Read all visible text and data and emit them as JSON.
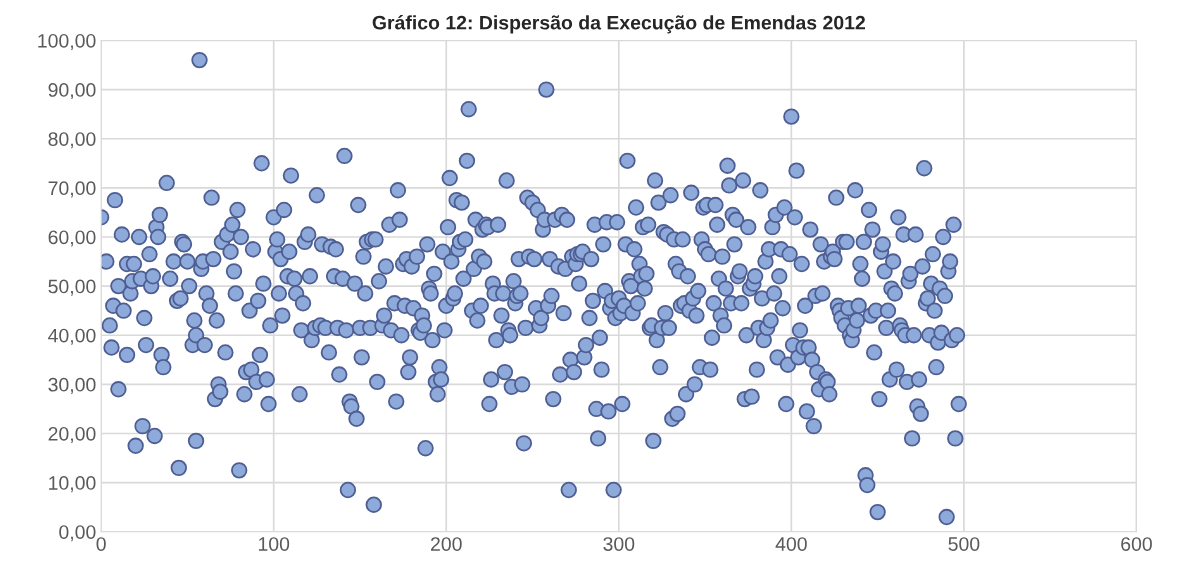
{
  "chart_data": {
    "type": "scatter",
    "title": "Gráfico 12: Dispersão da Execução de Emendas 2012",
    "xlim": [
      0,
      600
    ],
    "xticks": [
      0,
      100,
      200,
      300,
      400,
      500,
      600
    ],
    "ylim": [
      0,
      100
    ],
    "yticks": [
      {
        "value": 0,
        "label": "0,00"
      },
      {
        "value": 10,
        "label": "10,00"
      },
      {
        "value": 20,
        "label": "20,00"
      },
      {
        "value": 30,
        "label": "30,00"
      },
      {
        "value": 40,
        "label": "40,00"
      },
      {
        "value": 50,
        "label": "50,00"
      },
      {
        "value": 60,
        "label": "60,00"
      },
      {
        "value": 70,
        "label": "70,00"
      },
      {
        "value": 80,
        "label": "80,00"
      },
      {
        "value": 90,
        "label": "90,00"
      },
      {
        "value": 100,
        "label": "100,00"
      }
    ],
    "grid": true,
    "marker": "circle",
    "series": [
      {
        "color": "#8eaadb",
        "x": [
          0,
          3,
          5,
          6,
          7,
          8,
          10,
          10,
          12,
          13,
          15,
          15,
          17,
          18,
          19,
          20,
          22,
          23,
          24,
          25,
          26,
          28,
          29,
          30,
          31,
          32,
          33,
          34,
          35,
          36,
          38,
          40,
          42,
          44,
          45,
          46,
          47,
          48,
          50,
          51,
          53,
          54,
          55,
          55,
          57,
          58,
          59,
          60,
          61,
          63,
          64,
          65,
          66,
          67,
          68,
          69,
          70,
          72,
          73,
          75,
          76,
          77,
          78,
          79,
          80,
          81,
          83,
          84,
          86,
          87,
          88,
          90,
          91,
          92,
          93,
          94,
          96,
          97,
          98,
          100,
          101,
          102,
          103,
          104,
          105,
          106,
          108,
          109,
          110,
          112,
          113,
          115,
          116,
          117,
          118,
          120,
          121,
          122,
          124,
          125,
          127,
          128,
          130,
          132,
          133,
          135,
          136,
          137,
          138,
          140,
          141,
          142,
          143,
          144,
          145,
          147,
          148,
          149,
          150,
          151,
          152,
          153,
          154,
          156,
          157,
          158,
          159,
          160,
          161,
          163,
          164,
          165,
          167,
          168,
          170,
          171,
          172,
          173,
          174,
          175,
          176,
          177,
          178,
          179,
          180,
          181,
          183,
          184,
          185,
          186,
          187,
          188,
          189,
          190,
          191,
          192,
          193,
          194,
          195,
          196,
          197,
          198,
          199,
          200,
          201,
          202,
          203,
          204,
          205,
          206,
          207,
          208,
          209,
          210,
          211,
          212,
          213,
          215,
          216,
          217,
          218,
          219,
          220,
          221,
          222,
          223,
          224,
          225,
          226,
          227,
          228,
          229,
          230,
          232,
          233,
          234,
          235,
          236,
          237,
          238,
          239,
          240,
          241,
          242,
          243,
          244,
          245,
          246,
          247,
          248,
          250,
          251,
          252,
          253,
          254,
          255,
          256,
          257,
          258,
          259,
          260,
          261,
          262,
          263,
          265,
          266,
          267,
          268,
          269,
          270,
          271,
          272,
          273,
          274,
          275,
          276,
          277,
          278,
          279,
          280,
          281,
          283,
          284,
          285,
          286,
          287,
          288,
          289,
          290,
          291,
          292,
          293,
          294,
          295,
          296,
          297,
          298,
          299,
          300,
          301,
          302,
          303,
          304,
          305,
          306,
          307,
          308,
          309,
          310,
          311,
          312,
          313,
          314,
          315,
          316,
          317,
          318,
          319,
          320,
          321,
          322,
          323,
          324,
          325,
          326,
          327,
          328,
          329,
          330,
          331,
          332,
          333,
          334,
          335,
          336,
          337,
          338,
          339,
          340,
          341,
          342,
          343,
          344,
          345,
          346,
          347,
          348,
          349,
          350,
          351,
          352,
          353,
          354,
          355,
          356,
          357,
          358,
          359,
          360,
          361,
          362,
          363,
          364,
          365,
          366,
          367,
          368,
          369,
          370,
          371,
          372,
          373,
          374,
          375,
          376,
          377,
          378,
          379,
          380,
          381,
          382,
          383,
          384,
          385,
          386,
          387,
          388,
          389,
          390,
          391,
          392,
          393,
          394,
          395,
          396,
          397,
          398,
          399,
          400,
          401,
          402,
          403,
          404,
          405,
          406,
          407,
          408,
          409,
          410,
          411,
          412,
          413,
          414,
          415,
          416,
          417,
          418,
          419,
          420,
          421,
          422,
          423,
          424,
          425,
          426,
          427,
          428,
          429,
          430,
          431,
          432,
          433,
          434,
          435,
          436,
          437,
          438,
          439,
          440,
          441,
          442,
          443,
          444,
          445,
          446,
          447,
          448,
          449,
          450,
          451,
          452,
          453,
          454,
          455,
          456,
          457,
          458,
          459,
          460,
          461,
          462,
          463,
          464,
          465,
          466,
          467,
          468,
          469,
          470,
          471,
          472,
          473,
          474,
          475,
          476,
          477,
          478,
          479,
          480,
          481,
          482,
          483,
          484,
          485,
          486,
          487,
          488,
          489,
          490,
          491,
          492,
          493,
          494,
          495,
          496,
          497
        ],
        "values": [
          64,
          55,
          42,
          37.5,
          46,
          67.5,
          29,
          50,
          60.5,
          45,
          36,
          54.5,
          48.5,
          51,
          54.5,
          17.5,
          60,
          51.5,
          21.5,
          43.5,
          38,
          56.5,
          50,
          52,
          19.5,
          62,
          60,
          64.5,
          36,
          33.5,
          71,
          51.5,
          55,
          47,
          13,
          47.5,
          59,
          58.5,
          55,
          50,
          38,
          43,
          40,
          18.5,
          96,
          53.5,
          55,
          38,
          48.5,
          46,
          68,
          55.5,
          27,
          43,
          30,
          28.5,
          59,
          36.5,
          60.5,
          57,
          62.5,
          53,
          48.5,
          65.5,
          12.5,
          60,
          28,
          32.5,
          45,
          33,
          57.5,
          30.5,
          47,
          36,
          75,
          50.5,
          31,
          26,
          42,
          64,
          57,
          59.5,
          48.5,
          55.5,
          44,
          65.5,
          52,
          57,
          72.5,
          51.5,
          48.5,
          28,
          41,
          46.5,
          59,
          60.5,
          52,
          39,
          41.5,
          68.5,
          42,
          58.5,
          41.5,
          36.5,
          58,
          52,
          57.5,
          41.5,
          32,
          51.5,
          76.5,
          41,
          8.5,
          26.5,
          25.5,
          50.5,
          23,
          66.5,
          41.5,
          35.5,
          56,
          48.5,
          59,
          41.5,
          59.5,
          5.5,
          59.5,
          30.5,
          51,
          42,
          44,
          54,
          62.5,
          41,
          46.5,
          26.5,
          69.5,
          63.5,
          40,
          54.5,
          46,
          55.5,
          32.5,
          35.5,
          54,
          45.5,
          56,
          41,
          40.5,
          44,
          42,
          17,
          58.5,
          49.5,
          48.5,
          39,
          52.5,
          30.5,
          28,
          33.5,
          31,
          57,
          41,
          46,
          62,
          72,
          55,
          47.5,
          48.5,
          67.5,
          57.5,
          59,
          67,
          51.5,
          59.5,
          75.5,
          86,
          45,
          53.5,
          63.5,
          43,
          56,
          46,
          61.5,
          55,
          62.5,
          62,
          26,
          31,
          50.5,
          48.5,
          39,
          62.5,
          44,
          48.5,
          32.5,
          71.5,
          41,
          40,
          29.5,
          51,
          46.5,
          48,
          55.5,
          48.5,
          30,
          18,
          41.5,
          68,
          56,
          67,
          55.5,
          45.5,
          65.5,
          42,
          43.5,
          61.5,
          63.5,
          90,
          46,
          55.5,
          48,
          27,
          63.5,
          54,
          32,
          64.5,
          44.5,
          53.5,
          63.5,
          8.5,
          35,
          56,
          32.5,
          54.5,
          56.5,
          50.5,
          56.5,
          57,
          35.5,
          38,
          43.5,
          55.5,
          47,
          62.5,
          25,
          19,
          39.5,
          33,
          58.5,
          49,
          63,
          24.5,
          45.5,
          47,
          8.5,
          43.5,
          63,
          47.5,
          44.5,
          26,
          46,
          58.5,
          75.5,
          51,
          50,
          44.5,
          57.5,
          66,
          46.5,
          54.5,
          52,
          62,
          49.5,
          52.5,
          62.5,
          41.5,
          42,
          18.5,
          71.5,
          39,
          67,
          33.5,
          41.5,
          61,
          44.5,
          60.5,
          41.5,
          68.5,
          23,
          59.5,
          54.5,
          24,
          53,
          46,
          59.5,
          46.5,
          28,
          52,
          45,
          69,
          47.5,
          30,
          44,
          49,
          33.5,
          59.5,
          66,
          57.5,
          66.5,
          56.5,
          33,
          39.5,
          46.5,
          66.5,
          62.5,
          51.5,
          44,
          56,
          42,
          49.5,
          74.5,
          70.5,
          46.5,
          64.5,
          58.5,
          63.5,
          52,
          53,
          46.5,
          71.5,
          27,
          40,
          62,
          49.5,
          27.5,
          50.5,
          52,
          33,
          41.5,
          69.5,
          47.5,
          39,
          55,
          41.5,
          57.5,
          43,
          62,
          48.5,
          64.5,
          35.5,
          52,
          57.5,
          45.5,
          66,
          26,
          34,
          56.5,
          84.5,
          38,
          64,
          73.5,
          35.5,
          41,
          54.5,
          37.5,
          46,
          24.5,
          37.5,
          61.5,
          35,
          21.5,
          48,
          32.5,
          29,
          58.5,
          48.5,
          55,
          31,
          30.5,
          28,
          56,
          57,
          55.5,
          68,
          46,
          45,
          43.5,
          59,
          42,
          59,
          45.5,
          40,
          39,
          41,
          69.5,
          43,
          46,
          54.5,
          51.5,
          59,
          11.5,
          9.5,
          65.5,
          44,
          61.5,
          36.5,
          45,
          4,
          27,
          57,
          58.5,
          53,
          41.5,
          45,
          31,
          49.5,
          55,
          48.5,
          33,
          64,
          42,
          41,
          60.5,
          40,
          30.5,
          51,
          52.5,
          19,
          40,
          60.5,
          25.5,
          31,
          24,
          54,
          74,
          46.5,
          47.5,
          40,
          50.5,
          56.5,
          45,
          33.5,
          38.5,
          49.5,
          40.5,
          60,
          48,
          3,
          53,
          55,
          39,
          62.5,
          19,
          40,
          26
        ]
      }
    ]
  }
}
